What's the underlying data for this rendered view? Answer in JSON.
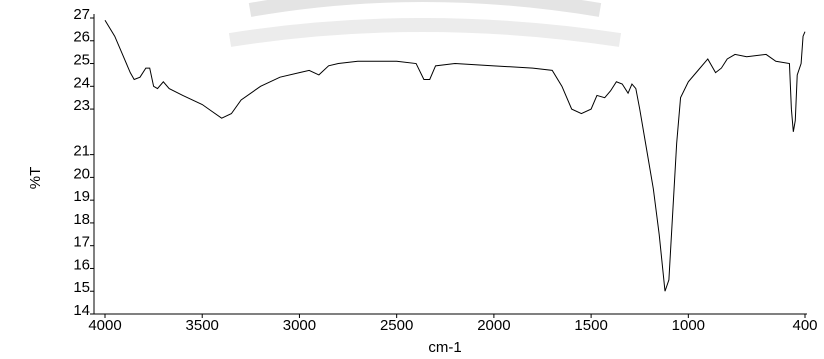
{
  "chart_data": {
    "type": "line",
    "xlabel": "cm-1",
    "ylabel": "%T",
    "xlim": [
      4000,
      400
    ],
    "ylim": [
      14,
      27
    ],
    "xticks": [
      4000,
      3500,
      3000,
      2500,
      2000,
      1500,
      1000,
      400
    ],
    "yticks": [
      14,
      15,
      16,
      17,
      18,
      19,
      20,
      21,
      23,
      24,
      25,
      26,
      27
    ],
    "color": "#000000",
    "x": [
      4000,
      3950,
      3900,
      3870,
      3850,
      3820,
      3790,
      3770,
      3750,
      3730,
      3700,
      3670,
      3600,
      3500,
      3450,
      3400,
      3350,
      3300,
      3200,
      3100,
      3000,
      2950,
      2900,
      2850,
      2800,
      2700,
      2500,
      2400,
      2360,
      2330,
      2300,
      2200,
      2000,
      1800,
      1700,
      1650,
      1600,
      1550,
      1500,
      1470,
      1430,
      1400,
      1370,
      1340,
      1310,
      1290,
      1270,
      1250,
      1220,
      1180,
      1150,
      1120,
      1100,
      1080,
      1060,
      1040,
      1000,
      950,
      900,
      860,
      830,
      800,
      760,
      700,
      600,
      550,
      480,
      470,
      460,
      450,
      440,
      420,
      410,
      400
    ],
    "values": [
      26.9,
      26.2,
      25.2,
      24.6,
      24.3,
      24.4,
      24.8,
      24.8,
      24.0,
      23.9,
      24.2,
      23.9,
      23.6,
      23.2,
      22.9,
      22.6,
      22.8,
      23.4,
      24.0,
      24.4,
      24.6,
      24.7,
      24.5,
      24.9,
      25.0,
      25.1,
      25.1,
      25.0,
      24.3,
      24.3,
      24.9,
      25.0,
      24.9,
      24.8,
      24.7,
      24.0,
      23.0,
      22.8,
      23.0,
      23.6,
      23.5,
      23.8,
      24.2,
      24.1,
      23.7,
      24.1,
      23.9,
      23.0,
      21.5,
      19.5,
      17.5,
      15.0,
      15.5,
      18.5,
      21.5,
      23.5,
      24.2,
      24.7,
      25.2,
      24.6,
      24.8,
      25.2,
      25.4,
      25.3,
      25.4,
      25.1,
      25.0,
      23.0,
      22.0,
      22.5,
      24.5,
      25.0,
      26.2,
      26.4
    ]
  }
}
